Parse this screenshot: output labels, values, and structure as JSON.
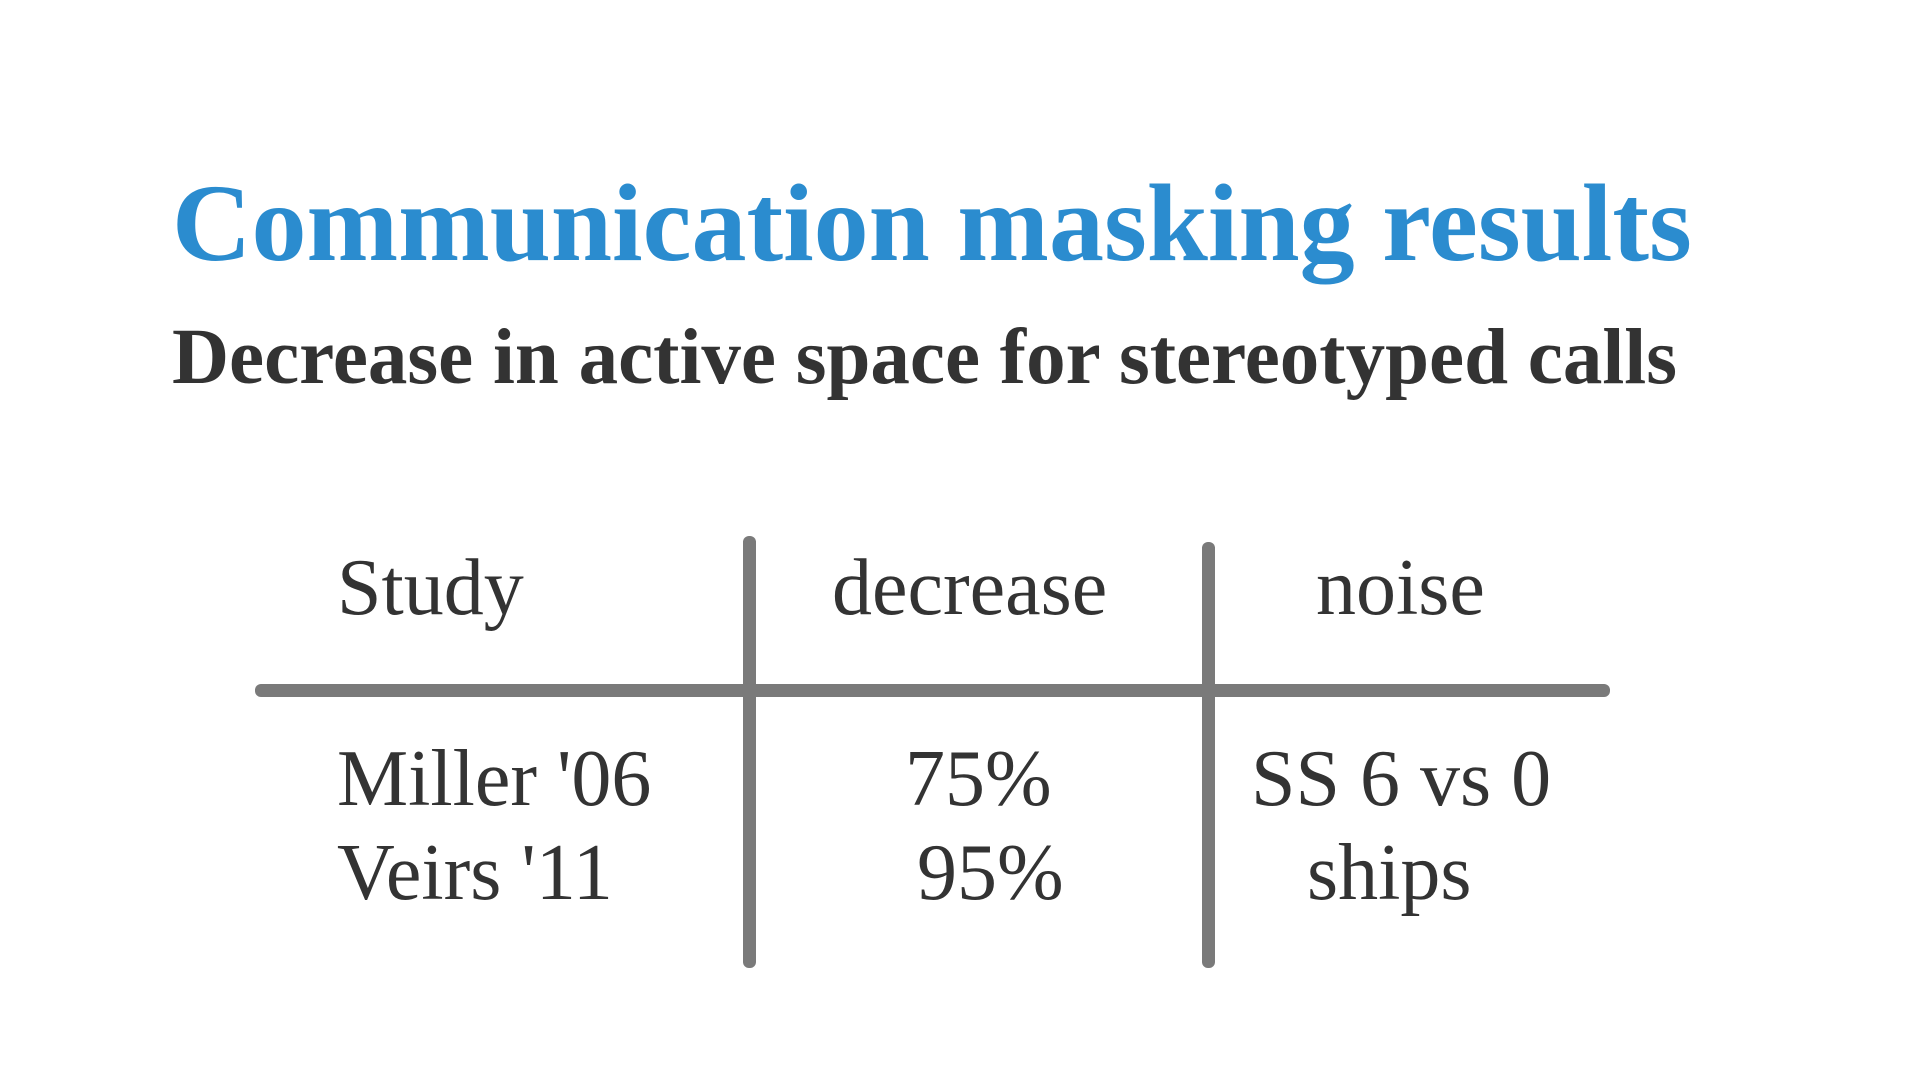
{
  "title": "Communication masking results",
  "subtitle": "Decrease in active space for stereotyped calls",
  "colors": {
    "title": "#2b8ccf",
    "text": "#333333",
    "rule": "#7a7a7a",
    "background": "#ffffff"
  },
  "table": {
    "headers": [
      "Study",
      "decrease",
      "noise"
    ],
    "rows": [
      [
        "Miller '06",
        "75%",
        "SS 6 vs 0"
      ],
      [
        "Veirs '11",
        "95%",
        "ships"
      ]
    ]
  }
}
